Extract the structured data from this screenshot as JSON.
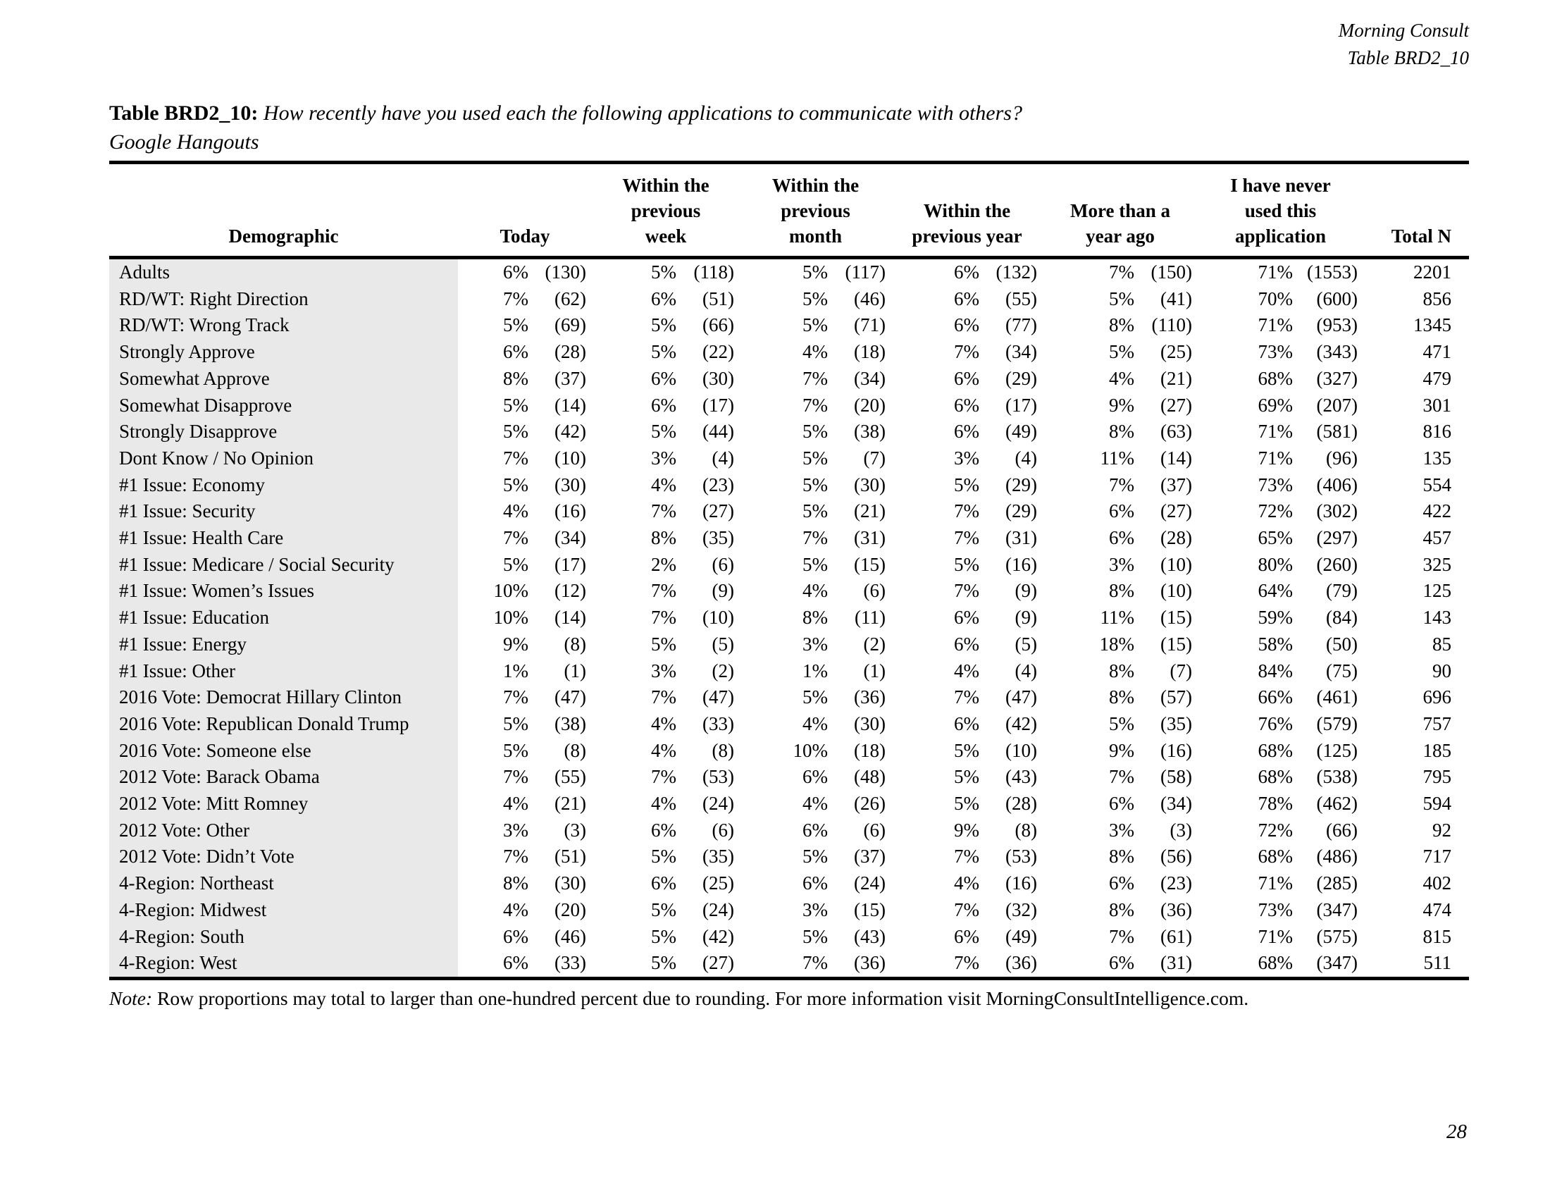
{
  "document": {
    "source": "Morning Consult",
    "table_ref": "Table BRD2_10",
    "page_number": "28"
  },
  "title": {
    "label": "Table BRD2_10:",
    "question": "How recently have you used each the following applications to communicate with others?",
    "subtitle": "Google Hangouts"
  },
  "note": {
    "label": "Note:",
    "text": "Row proportions may total to larger than one-hundred percent due to rounding. For more information visit MorningConsultIntelligence.com."
  },
  "colors": {
    "demographic_shade": "#e9e9e9",
    "rule": "#000000"
  },
  "table": {
    "headers": {
      "demographic": "Demographic",
      "today": "Today",
      "week": "Within the previous week",
      "month": "Within the previous month",
      "year": "Within the previous year",
      "more_than_year": "More than a year ago",
      "never": "I have never used this application",
      "total": "Total N"
    },
    "rows": [
      [
        "Adults",
        "6%",
        "(130)",
        "5%",
        "(118)",
        "5%",
        "(117)",
        "6%",
        "(132)",
        "7%",
        "(150)",
        "71%",
        "(1553)",
        "2201"
      ],
      [
        "RD/WT: Right Direction",
        "7%",
        "(62)",
        "6%",
        "(51)",
        "5%",
        "(46)",
        "6%",
        "(55)",
        "5%",
        "(41)",
        "70%",
        "(600)",
        "856"
      ],
      [
        "RD/WT: Wrong Track",
        "5%",
        "(69)",
        "5%",
        "(66)",
        "5%",
        "(71)",
        "6%",
        "(77)",
        "8%",
        "(110)",
        "71%",
        "(953)",
        "1345"
      ],
      [
        "Strongly Approve",
        "6%",
        "(28)",
        "5%",
        "(22)",
        "4%",
        "(18)",
        "7%",
        "(34)",
        "5%",
        "(25)",
        "73%",
        "(343)",
        "471"
      ],
      [
        "Somewhat Approve",
        "8%",
        "(37)",
        "6%",
        "(30)",
        "7%",
        "(34)",
        "6%",
        "(29)",
        "4%",
        "(21)",
        "68%",
        "(327)",
        "479"
      ],
      [
        "Somewhat Disapprove",
        "5%",
        "(14)",
        "6%",
        "(17)",
        "7%",
        "(20)",
        "6%",
        "(17)",
        "9%",
        "(27)",
        "69%",
        "(207)",
        "301"
      ],
      [
        "Strongly Disapprove",
        "5%",
        "(42)",
        "5%",
        "(44)",
        "5%",
        "(38)",
        "6%",
        "(49)",
        "8%",
        "(63)",
        "71%",
        "(581)",
        "816"
      ],
      [
        "Dont Know / No Opinion",
        "7%",
        "(10)",
        "3%",
        "(4)",
        "5%",
        "(7)",
        "3%",
        "(4)",
        "11%",
        "(14)",
        "71%",
        "(96)",
        "135"
      ],
      [
        "#1 Issue: Economy",
        "5%",
        "(30)",
        "4%",
        "(23)",
        "5%",
        "(30)",
        "5%",
        "(29)",
        "7%",
        "(37)",
        "73%",
        "(406)",
        "554"
      ],
      [
        "#1 Issue: Security",
        "4%",
        "(16)",
        "7%",
        "(27)",
        "5%",
        "(21)",
        "7%",
        "(29)",
        "6%",
        "(27)",
        "72%",
        "(302)",
        "422"
      ],
      [
        "#1 Issue: Health Care",
        "7%",
        "(34)",
        "8%",
        "(35)",
        "7%",
        "(31)",
        "7%",
        "(31)",
        "6%",
        "(28)",
        "65%",
        "(297)",
        "457"
      ],
      [
        "#1 Issue: Medicare / Social Security",
        "5%",
        "(17)",
        "2%",
        "(6)",
        "5%",
        "(15)",
        "5%",
        "(16)",
        "3%",
        "(10)",
        "80%",
        "(260)",
        "325"
      ],
      [
        "#1 Issue: Women’s Issues",
        "10%",
        "(12)",
        "7%",
        "(9)",
        "4%",
        "(6)",
        "7%",
        "(9)",
        "8%",
        "(10)",
        "64%",
        "(79)",
        "125"
      ],
      [
        "#1 Issue: Education",
        "10%",
        "(14)",
        "7%",
        "(10)",
        "8%",
        "(11)",
        "6%",
        "(9)",
        "11%",
        "(15)",
        "59%",
        "(84)",
        "143"
      ],
      [
        "#1 Issue: Energy",
        "9%",
        "(8)",
        "5%",
        "(5)",
        "3%",
        "(2)",
        "6%",
        "(5)",
        "18%",
        "(15)",
        "58%",
        "(50)",
        "85"
      ],
      [
        "#1 Issue: Other",
        "1%",
        "(1)",
        "3%",
        "(2)",
        "1%",
        "(1)",
        "4%",
        "(4)",
        "8%",
        "(7)",
        "84%",
        "(75)",
        "90"
      ],
      [
        "2016 Vote: Democrat Hillary Clinton",
        "7%",
        "(47)",
        "7%",
        "(47)",
        "5%",
        "(36)",
        "7%",
        "(47)",
        "8%",
        "(57)",
        "66%",
        "(461)",
        "696"
      ],
      [
        "2016 Vote: Republican Donald Trump",
        "5%",
        "(38)",
        "4%",
        "(33)",
        "4%",
        "(30)",
        "6%",
        "(42)",
        "5%",
        "(35)",
        "76%",
        "(579)",
        "757"
      ],
      [
        "2016 Vote: Someone else",
        "5%",
        "(8)",
        "4%",
        "(8)",
        "10%",
        "(18)",
        "5%",
        "(10)",
        "9%",
        "(16)",
        "68%",
        "(125)",
        "185"
      ],
      [
        "2012 Vote: Barack Obama",
        "7%",
        "(55)",
        "7%",
        "(53)",
        "6%",
        "(48)",
        "5%",
        "(43)",
        "7%",
        "(58)",
        "68%",
        "(538)",
        "795"
      ],
      [
        "2012 Vote: Mitt Romney",
        "4%",
        "(21)",
        "4%",
        "(24)",
        "4%",
        "(26)",
        "5%",
        "(28)",
        "6%",
        "(34)",
        "78%",
        "(462)",
        "594"
      ],
      [
        "2012 Vote: Other",
        "3%",
        "(3)",
        "6%",
        "(6)",
        "6%",
        "(6)",
        "9%",
        "(8)",
        "3%",
        "(3)",
        "72%",
        "(66)",
        "92"
      ],
      [
        "2012 Vote: Didn’t Vote",
        "7%",
        "(51)",
        "5%",
        "(35)",
        "5%",
        "(37)",
        "7%",
        "(53)",
        "8%",
        "(56)",
        "68%",
        "(486)",
        "717"
      ],
      [
        "4-Region: Northeast",
        "8%",
        "(30)",
        "6%",
        "(25)",
        "6%",
        "(24)",
        "4%",
        "(16)",
        "6%",
        "(23)",
        "71%",
        "(285)",
        "402"
      ],
      [
        "4-Region: Midwest",
        "4%",
        "(20)",
        "5%",
        "(24)",
        "3%",
        "(15)",
        "7%",
        "(32)",
        "8%",
        "(36)",
        "73%",
        "(347)",
        "474"
      ],
      [
        "4-Region: South",
        "6%",
        "(46)",
        "5%",
        "(42)",
        "5%",
        "(43)",
        "6%",
        "(49)",
        "7%",
        "(61)",
        "71%",
        "(575)",
        "815"
      ],
      [
        "4-Region: West",
        "6%",
        "(33)",
        "5%",
        "(27)",
        "7%",
        "(36)",
        "7%",
        "(36)",
        "6%",
        "(31)",
        "68%",
        "(347)",
        "511"
      ]
    ]
  }
}
